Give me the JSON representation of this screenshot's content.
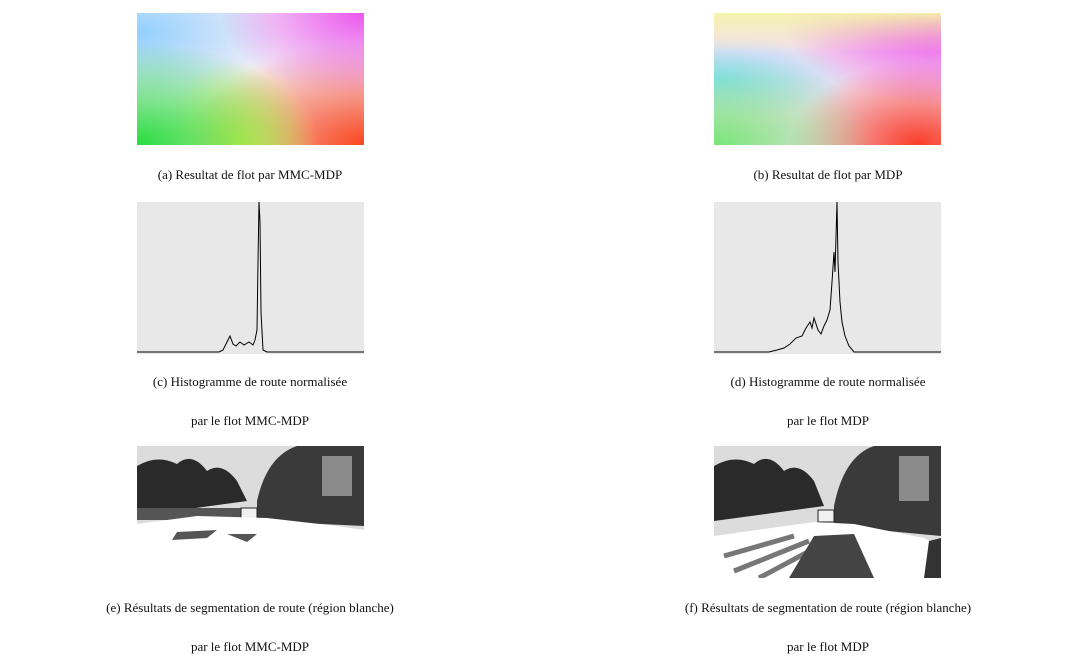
{
  "panels": [
    {
      "caption": [
        "(a) Resultat de flot par MMC-MDP"
      ]
    },
    {
      "caption": [
        "(b) Resultat de flot par MDP"
      ]
    },
    {
      "caption": [
        "(c) Histogramme de route normalisée",
        "par le flot MMC-MDP"
      ]
    },
    {
      "caption": [
        "(d) Histogramme de route normalisée",
        "par le flot MDP"
      ]
    },
    {
      "caption": [
        "(e) Résultats de segmentation de route (région blanche)",
        "par le flot MMC-MDP"
      ]
    },
    {
      "caption": [
        "(f) Résultats de segmentation de route (région blanche)",
        "par le flot MDP"
      ]
    }
  ]
}
